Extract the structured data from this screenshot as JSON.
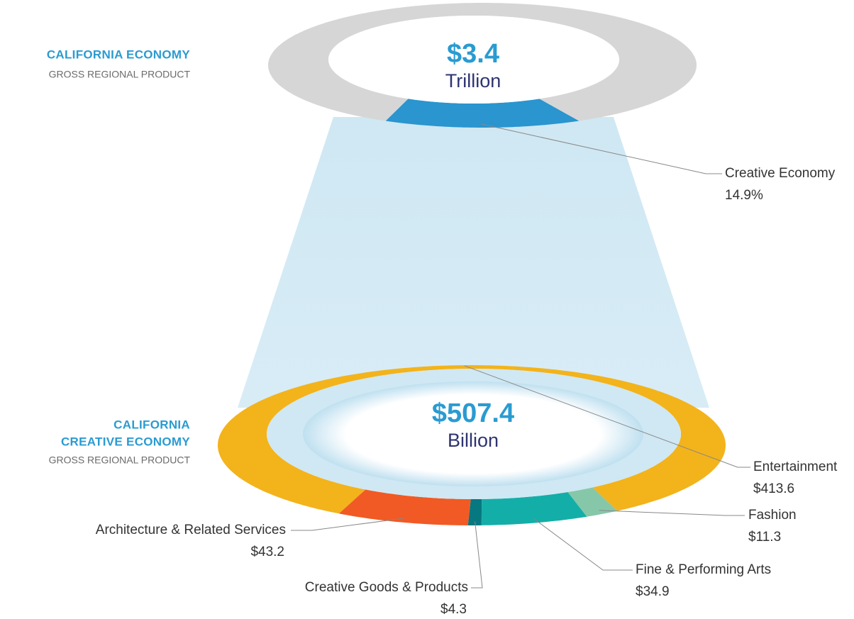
{
  "chart_data": [
    {
      "type": "donut",
      "title_lines": [
        "CALIFORNIA ECONOMY"
      ],
      "subtitle": "GROSS REGIONAL PRODUCT",
      "center_value": "$3.4",
      "center_unit": "Trillion",
      "categories": [
        "Creative Economy",
        null
      ],
      "values": [
        14.9,
        85.1
      ],
      "value_labels": [
        "14.9%",
        null
      ],
      "colors": [
        "#2a95cf",
        "#d7d6d6"
      ]
    },
    {
      "type": "donut",
      "title_lines": [
        "CALIFORNIA",
        "CREATIVE ECONOMY"
      ],
      "subtitle": "GROSS REGIONAL PRODUCT",
      "center_value": "$507.4",
      "center_unit": "Billion",
      "categories": [
        "Entertainment",
        "Fashion",
        "Fine & Performing Arts",
        "Creative Goods & Products",
        "Architecture & Related Services"
      ],
      "values": [
        413.6,
        11.3,
        34.9,
        4.3,
        43.2
      ],
      "value_labels": [
        "$413.6",
        "$11.3",
        "$34.9",
        "$4.3",
        "$43.2"
      ],
      "colors": [
        "#f3b31b",
        "#86c7aa",
        "#14aea8",
        "#067880",
        "#f15a24"
      ]
    }
  ]
}
